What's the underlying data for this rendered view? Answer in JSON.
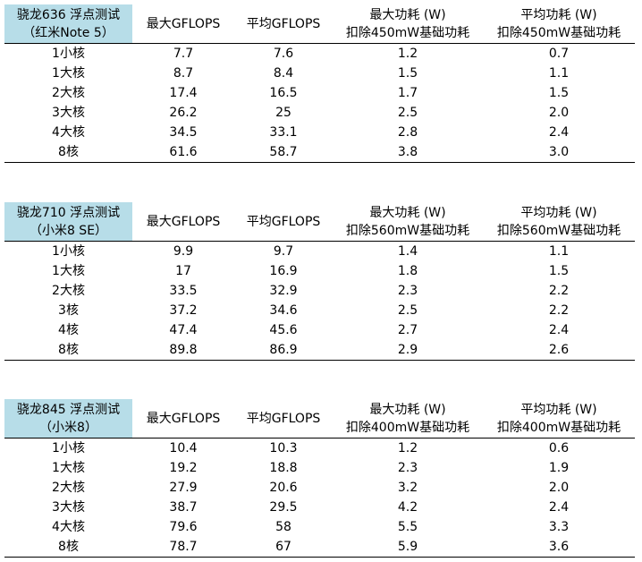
{
  "tables": [
    {
      "header": [
        [
          "骁龙636 浮点测试",
          "（红米Note 5）"
        ],
        [
          "最大GFLOPS"
        ],
        [
          "平均GFLOPS"
        ],
        [
          "最大功耗 (W)",
          "扣除450mW基础功耗"
        ],
        [
          "平均功耗 (W)",
          "扣除450mW基础功耗"
        ]
      ],
      "rows": [
        [
          "1小核",
          "7.7",
          "7.6",
          "1.2",
          "0.7"
        ],
        [
          "1大核",
          "8.7",
          "8.4",
          "1.5",
          "1.1"
        ],
        [
          "2大核",
          "17.4",
          "16.5",
          "1.7",
          "1.5"
        ],
        [
          "3大核",
          "26.2",
          "25",
          "2.5",
          "2.0"
        ],
        [
          "4大核",
          "34.5",
          "33.1",
          "2.8",
          "2.4"
        ],
        [
          "8核",
          "61.6",
          "58.7",
          "3.8",
          "3.0"
        ]
      ]
    },
    {
      "header": [
        [
          "骁龙710 浮点测试",
          "（小米8 SE）"
        ],
        [
          "最大GFLOPS"
        ],
        [
          "平均GFLOPS"
        ],
        [
          "最大功耗 (W)",
          "扣除560mW基础功耗"
        ],
        [
          "平均功耗 (W)",
          "扣除560mW基础功耗"
        ]
      ],
      "rows": [
        [
          "1小核",
          "9.9",
          "9.7",
          "1.4",
          "1.1"
        ],
        [
          "1大核",
          "17",
          "16.9",
          "1.8",
          "1.5"
        ],
        [
          "2大核",
          "33.5",
          "32.9",
          "2.3",
          "2.2"
        ],
        [
          "3核",
          "37.2",
          "34.6",
          "2.5",
          "2.2"
        ],
        [
          "4核",
          "47.4",
          "45.6",
          "2.7",
          "2.4"
        ],
        [
          "8核",
          "89.8",
          "86.9",
          "2.9",
          "2.6"
        ]
      ]
    },
    {
      "header": [
        [
          "骁龙845 浮点测试",
          "（小米8）"
        ],
        [
          "最大GFLOPS"
        ],
        [
          "平均GFLOPS"
        ],
        [
          "最大功耗 (W)",
          "扣除400mW基础功耗"
        ],
        [
          "平均功耗 (W)",
          "扣除400mW基础功耗"
        ]
      ],
      "rows": [
        [
          "1小核",
          "10.4",
          "10.3",
          "1.2",
          "0.6"
        ],
        [
          "1大核",
          "19.2",
          "18.8",
          "2.3",
          "1.9"
        ],
        [
          "2大核",
          "27.9",
          "20.6",
          "3.2",
          "2.0"
        ],
        [
          "3大核",
          "38.7",
          "29.5",
          "4.2",
          "2.4"
        ],
        [
          "4大核",
          "79.6",
          "58",
          "5.5",
          "3.3"
        ],
        [
          "8核",
          "78.7",
          "67",
          "5.9",
          "3.6"
        ]
      ]
    }
  ]
}
